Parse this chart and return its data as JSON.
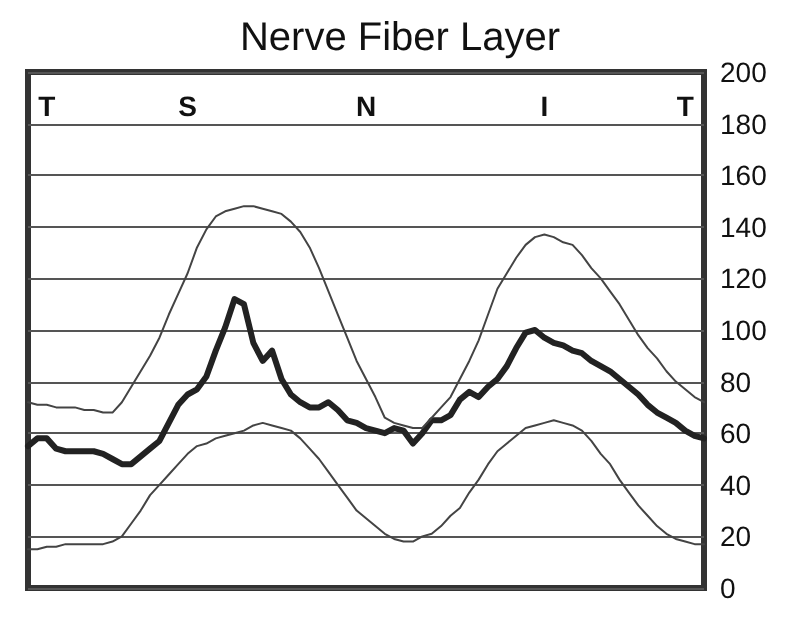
{
  "chart_data": {
    "type": "line",
    "title": "Nerve Fiber Layer",
    "categories": [
      null,
      null,
      "T",
      null,
      null,
      null,
      null,
      null,
      null,
      null,
      null,
      null,
      null,
      null,
      null,
      null,
      null,
      "S",
      null,
      null,
      null,
      null,
      null,
      null,
      null,
      null,
      null,
      null,
      null,
      null,
      null,
      null,
      null,
      null,
      null,
      null,
      "N",
      null,
      null,
      null,
      null,
      null,
      null,
      null,
      null,
      null,
      null,
      null,
      null,
      null,
      null,
      null,
      null,
      null,
      null,
      "I",
      null,
      null,
      null,
      null,
      null,
      null,
      null,
      null,
      null,
      null,
      null,
      null,
      null,
      null,
      "T",
      null,
      null
    ],
    "ylim": [
      0,
      200
    ],
    "yticks": [
      0,
      20,
      40,
      60,
      80,
      100,
      120,
      140,
      160,
      180,
      200
    ],
    "grid": "y",
    "marker": "none",
    "line_style": "solid",
    "series": [
      {
        "color": "#222222",
        "values": [
          55,
          58,
          58,
          54,
          53,
          53,
          53,
          53,
          52,
          50,
          48,
          48,
          51,
          54,
          57,
          64,
          71,
          75,
          77,
          82,
          92,
          101,
          112,
          110,
          95,
          88,
          92,
          81,
          75,
          72,
          70,
          70,
          72,
          69,
          65,
          64,
          62,
          61,
          60,
          62,
          61,
          56,
          60,
          65,
          65,
          67,
          73,
          76,
          74,
          78,
          81,
          86,
          93,
          99,
          100,
          97,
          95,
          94,
          92,
          91,
          88,
          86,
          84,
          81,
          78,
          75,
          71,
          68,
          66,
          64,
          61,
          59,
          58
        ]
      },
      {
        "color": "#444444",
        "values": [
          72,
          71,
          71,
          70,
          70,
          70,
          69,
          69,
          68,
          68,
          72,
          78,
          84,
          90,
          97,
          106,
          114,
          122,
          132,
          139,
          144,
          146,
          147,
          148,
          148,
          147,
          146,
          145,
          142,
          138,
          132,
          124,
          115,
          106,
          97,
          88,
          81,
          74,
          66,
          64,
          63,
          62,
          62,
          66,
          70,
          74,
          81,
          88,
          96,
          106,
          116,
          122,
          128,
          133,
          136,
          137,
          136,
          134,
          133,
          129,
          124,
          120,
          115,
          110,
          104,
          98,
          93,
          89,
          84,
          80,
          77,
          74,
          72
        ]
      },
      {
        "color": "#444444",
        "values": [
          15,
          15,
          16,
          16,
          17,
          17,
          17,
          17,
          17,
          18,
          20,
          25,
          30,
          36,
          40,
          44,
          48,
          52,
          55,
          56,
          58,
          59,
          60,
          61,
          63,
          64,
          63,
          62,
          61,
          58,
          54,
          50,
          45,
          40,
          35,
          30,
          27,
          24,
          21,
          19,
          18,
          18,
          20,
          21,
          24,
          28,
          31,
          37,
          42,
          48,
          53,
          56,
          59,
          62,
          63,
          64,
          65,
          64,
          63,
          61,
          57,
          52,
          48,
          42,
          37,
          32,
          28,
          24,
          21,
          19,
          18,
          17,
          17
        ]
      }
    ]
  }
}
